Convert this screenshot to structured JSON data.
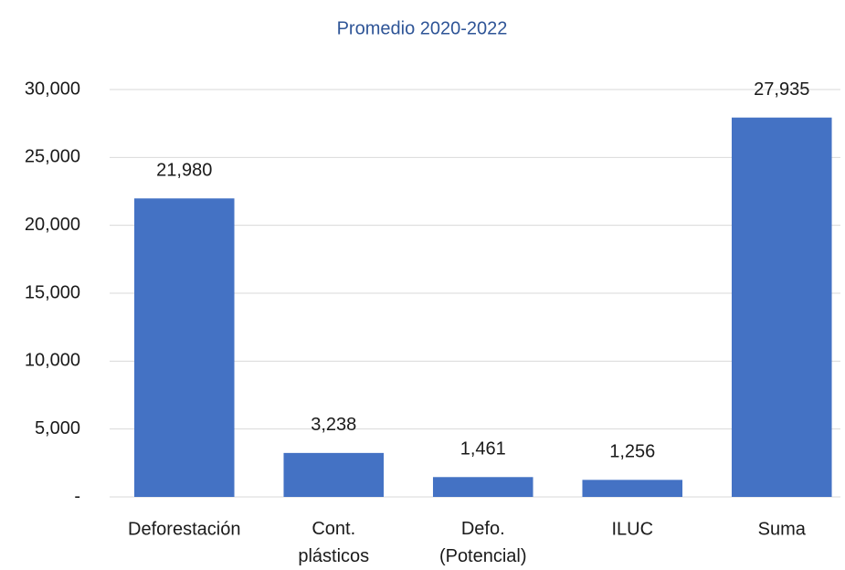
{
  "chart_data": {
    "type": "bar",
    "title": "Promedio 2020-2022",
    "categories": [
      "Deforestación",
      "Cont. plásticos",
      "Defo. (Potencial)",
      "ILUC",
      "Suma"
    ],
    "values": [
      21980,
      3238,
      1461,
      1256,
      27935
    ],
    "value_labels": [
      "21,980",
      "3,238",
      "1,461",
      "1,256",
      "27,935"
    ],
    "color": "#4472c4",
    "ylim": [
      0,
      30000
    ],
    "yticks": [
      {
        "value": 0,
        "label": "-"
      },
      {
        "value": 5000,
        "label": "5,000"
      },
      {
        "value": 10000,
        "label": "10,000"
      },
      {
        "value": 15000,
        "label": "15,000"
      },
      {
        "value": 20000,
        "label": "20,000"
      },
      {
        "value": 25000,
        "label": "25,000"
      },
      {
        "value": 30000,
        "label": "30,000"
      }
    ],
    "grid": true
  }
}
